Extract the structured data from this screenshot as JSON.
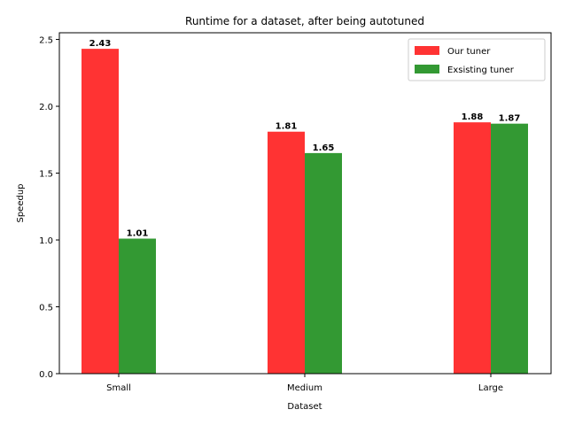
{
  "chart_data": {
    "type": "bar",
    "title": "Runtime for a dataset, after being autotuned",
    "xlabel": "Dataset",
    "ylabel": "Speedup",
    "categories": [
      "Small",
      "Medium",
      "Large"
    ],
    "series": [
      {
        "name": "Our tuner",
        "values": [
          2.43,
          1.81,
          1.88
        ],
        "labels": [
          "2.43",
          "1.81",
          "1.88"
        ],
        "color": "#ff3333"
      },
      {
        "name": "Exsisting tuner",
        "values": [
          1.01,
          1.65,
          1.87
        ],
        "labels": [
          "1.01",
          "1.65",
          "1.87"
        ],
        "color": "#339933"
      }
    ],
    "ylim": [
      0,
      2.55
    ],
    "yticks": [
      0.0,
      0.5,
      1.0,
      1.5,
      2.0,
      2.5
    ],
    "ytick_labels": [
      "0.0",
      "0.5",
      "1.0",
      "1.5",
      "2.0",
      "2.5"
    ],
    "grid": false,
    "legend_position": "top-right"
  }
}
